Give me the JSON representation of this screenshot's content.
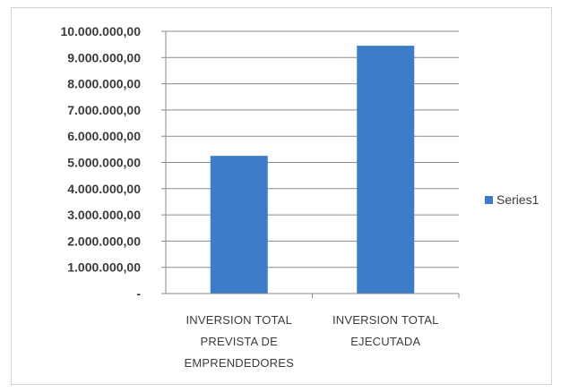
{
  "chart_data": {
    "type": "bar",
    "categories": [
      [
        "INVERSION TOTAL",
        "PREVISTA DE",
        "EMPRENDEDORES"
      ],
      [
        "INVERSION TOTAL",
        "EJECUTADA"
      ]
    ],
    "series": [
      {
        "name": "Series1",
        "values": [
          5250000,
          9450000
        ],
        "color": "#3d7cc9"
      }
    ],
    "ylim": [
      0,
      10000000
    ],
    "yticks": [
      0,
      1000000,
      2000000,
      3000000,
      4000000,
      5000000,
      6000000,
      7000000,
      8000000,
      9000000,
      10000000
    ],
    "ytick_labels": [
      "-",
      "1.000.000,00",
      "2.000.000,00",
      "3.000.000,00",
      "4.000.000,00",
      "5.000.000,00",
      "6.000.000,00",
      "7.000.000,00",
      "8.000.000,00",
      "9.000.000,00",
      "10.000.000,00"
    ],
    "grid": true,
    "legend_position": "right",
    "title": "",
    "xlabel": "",
    "ylabel": ""
  }
}
